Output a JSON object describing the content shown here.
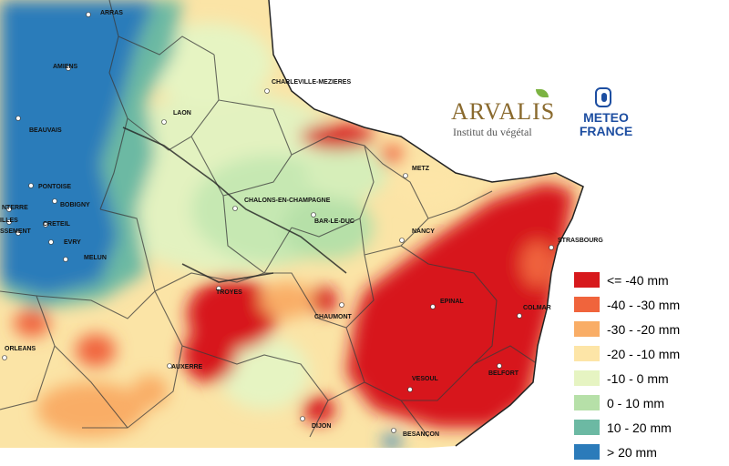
{
  "map": {
    "cities": [
      {
        "name": "ARRAS"
      },
      {
        "name": "AMIENS"
      },
      {
        "name": "BEAUVAIS"
      },
      {
        "name": "LAON"
      },
      {
        "name": "CHARLEVILLE-MEZIERES"
      },
      {
        "name": "METZ"
      },
      {
        "name": "CHALONS-EN-CHAMPAGNE"
      },
      {
        "name": "PONTOISE"
      },
      {
        "name": "BOBIGNY"
      },
      {
        "name": "NTERRE"
      },
      {
        "name": "CRETEIL"
      },
      {
        "name": "ILLES"
      },
      {
        "name": "SSEMENT"
      },
      {
        "name": "EVRY"
      },
      {
        "name": "MELUN"
      },
      {
        "name": "BAR-LE-DUC"
      },
      {
        "name": "NANCY"
      },
      {
        "name": "STRASBOURG"
      },
      {
        "name": "TROYES"
      },
      {
        "name": "EPINAL"
      },
      {
        "name": "COLMAR"
      },
      {
        "name": "CHAUMONT"
      },
      {
        "name": "ORLEANS"
      },
      {
        "name": "AUXERRE"
      },
      {
        "name": "VESOUL"
      },
      {
        "name": "BELFORT"
      },
      {
        "name": "DIJON"
      },
      {
        "name": "BESANCON"
      }
    ]
  },
  "logos": {
    "arvalis_name": "ARVALIS",
    "arvalis_sub": "Institut du végétal",
    "meteo_line1": "METEO",
    "meteo_line2": "FRANCE"
  },
  "legend": {
    "items": [
      {
        "label": "<= -40 mm",
        "color": "#d7191c"
      },
      {
        "label": "-40 - -30 mm",
        "color": "#f0643c"
      },
      {
        "label": "-30 - -20 mm",
        "color": "#f9ad66"
      },
      {
        "label": "-20 - -10 mm",
        "color": "#fde5a7"
      },
      {
        "label": "-10 - 0 mm",
        "color": "#e6f4c2"
      },
      {
        "label": "0 - 10 mm",
        "color": "#b6e0a8"
      },
      {
        "label": "10 - 20 mm",
        "color": "#6cb9a3"
      },
      {
        "label": "> 20 mm",
        "color": "#2b7bba"
      }
    ]
  }
}
